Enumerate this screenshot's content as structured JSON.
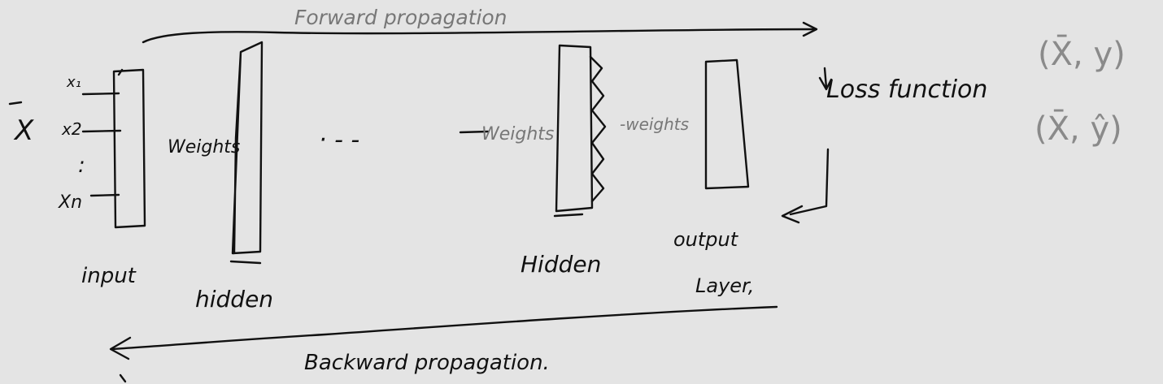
{
  "labels": {
    "forward": "Forward propagation",
    "backward": "Backward propagation.",
    "loss": "Loss function",
    "input_vector": "X",
    "x1": "x₁",
    "x2": "x2",
    "dots": ":",
    "xn": "Xn",
    "input": "input",
    "hidden_first": "hidden",
    "hidden_last": "Hidden",
    "weights_1": "Weights",
    "weights_2": "Weights",
    "weights_3": "-weights",
    "ellipsis": "· -  -",
    "output_line1": "output",
    "output_line2": "Layer,",
    "pair_true": "(X̄, y)",
    "pair_pred": "(X̄, ŷ)"
  },
  "colors": {
    "ink": "#111111",
    "forward_ink": "#777777",
    "pair_ink": "#8a8a8a",
    "background": "#e4e4e4"
  }
}
